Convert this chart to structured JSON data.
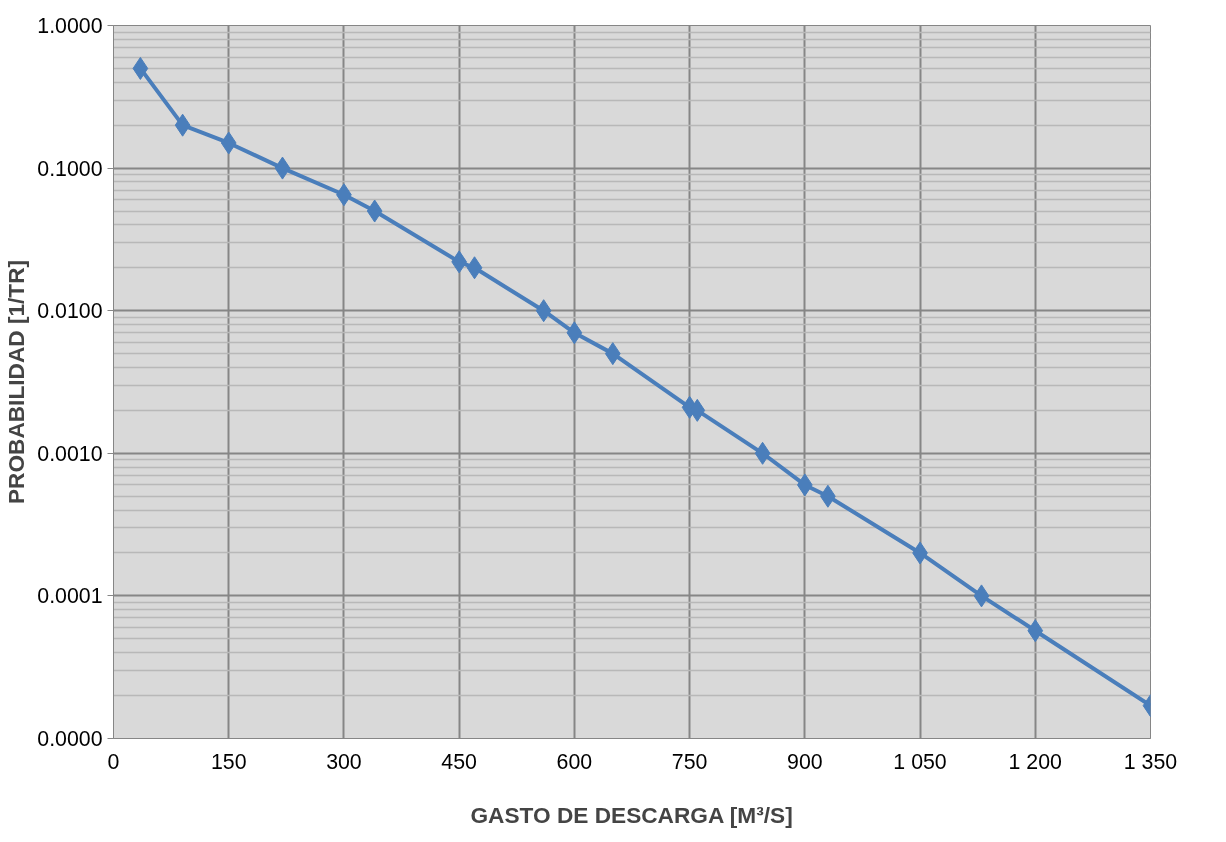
{
  "chart_data": {
    "type": "line",
    "xlabel": "GASTO DE DESCARGA [M³/S]",
    "ylabel": "PROBABILIDAD [1/TR]",
    "x": [
      35,
      90,
      150,
      220,
      300,
      340,
      450,
      470,
      560,
      600,
      650,
      750,
      760,
      845,
      900,
      930,
      1050,
      1130,
      1200,
      1350
    ],
    "series": [
      {
        "color": "#4a7ebb",
        "values": [
          0.5,
          0.2,
          0.15,
          0.1,
          0.065,
          0.05,
          0.022,
          0.02,
          0.01,
          0.007,
          0.005,
          0.0021,
          0.002,
          0.001,
          0.0006,
          0.0005,
          0.0002,
          0.0001,
          5.7e-05,
          1.7e-05
        ]
      }
    ],
    "xlim": [
      0,
      1350
    ],
    "xticks": [
      0,
      150,
      300,
      450,
      600,
      750,
      900,
      {
        "value": 1050,
        "label": "1 050"
      },
      {
        "value": 1200,
        "label": "1 200"
      },
      {
        "value": 1350,
        "label": "1 350"
      }
    ],
    "ylim": [
      1e-05,
      1
    ],
    "yticks": [
      {
        "value": 1e-05,
        "label": "0.0000"
      },
      {
        "value": 0.0001,
        "label": "0.0001"
      },
      {
        "value": 0.001,
        "label": "0.0010"
      },
      {
        "value": 0.01,
        "label": "0.0100"
      },
      {
        "value": 0.1,
        "label": "0.1000"
      },
      {
        "value": 1,
        "label": "1.0000"
      }
    ],
    "log": "y",
    "grid": true,
    "marker": "diamond",
    "line_style": "solid"
  }
}
